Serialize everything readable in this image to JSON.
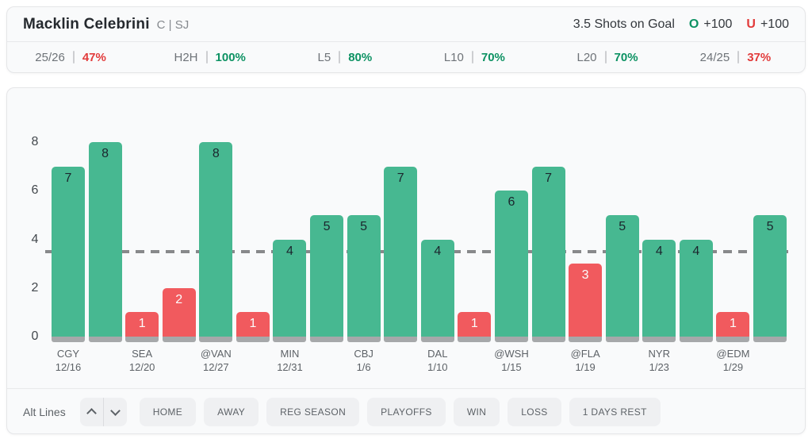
{
  "header": {
    "player_name": "Macklin Celebrini",
    "player_meta": "C | SJ",
    "prop_label": "3.5 Shots on Goal",
    "over": {
      "symbol": "O",
      "odds": "+100"
    },
    "under": {
      "symbol": "U",
      "odds": "+100"
    }
  },
  "splits": [
    {
      "label": "25/26",
      "value": "47%",
      "color": "#e23b3b"
    },
    {
      "label": "H2H",
      "value": "100%",
      "color": "#0d9263"
    },
    {
      "label": "L5",
      "value": "80%",
      "color": "#0d9263"
    },
    {
      "label": "L10",
      "value": "70%",
      "color": "#0d9263"
    },
    {
      "label": "L20",
      "value": "70%",
      "color": "#0d9263"
    },
    {
      "label": "24/25",
      "value": "37%",
      "color": "#e23b3b"
    }
  ],
  "chart_data": {
    "type": "bar",
    "ylabel": "",
    "xlabel": "",
    "ylim": [
      0,
      8
    ],
    "yticks": [
      0,
      2,
      4,
      6,
      8
    ],
    "threshold": 3.5,
    "legend": "none",
    "grid": "off",
    "bars": [
      {
        "value": 7,
        "result": "over",
        "opponent": "CGY",
        "date": "12/16"
      },
      {
        "value": 8,
        "result": "over"
      },
      {
        "value": 1,
        "result": "under",
        "opponent": "SEA",
        "date": "12/20"
      },
      {
        "value": 2,
        "result": "under"
      },
      {
        "value": 8,
        "result": "over",
        "opponent": "@VAN",
        "date": "12/27"
      },
      {
        "value": 1,
        "result": "under"
      },
      {
        "value": 4,
        "result": "over",
        "opponent": "MIN",
        "date": "12/31"
      },
      {
        "value": 5,
        "result": "over"
      },
      {
        "value": 5,
        "result": "over",
        "opponent": "CBJ",
        "date": "1/6"
      },
      {
        "value": 7,
        "result": "over"
      },
      {
        "value": 4,
        "result": "over",
        "opponent": "DAL",
        "date": "1/10"
      },
      {
        "value": 1,
        "result": "under"
      },
      {
        "value": 6,
        "result": "over",
        "opponent": "@WSH",
        "date": "1/15"
      },
      {
        "value": 7,
        "result": "over"
      },
      {
        "value": 3,
        "result": "under",
        "opponent": "@FLA",
        "date": "1/19"
      },
      {
        "value": 5,
        "result": "over"
      },
      {
        "value": 4,
        "result": "over",
        "opponent": "NYR",
        "date": "1/23"
      },
      {
        "value": 4,
        "result": "over"
      },
      {
        "value": 1,
        "result": "under",
        "opponent": "@EDM",
        "date": "1/29"
      },
      {
        "value": 5,
        "result": "over"
      }
    ],
    "colors": {
      "over_bar": "#47b891",
      "under_bar": "#f15a5e",
      "bar_base": "#a6a8aa",
      "threshold_line": "#88898b",
      "over_text": "#0d9263",
      "under_text": "#e23b3b"
    }
  },
  "toolbar": {
    "alt_lines_label": "Alt Lines",
    "stepper_icons": {
      "increase": "chevron-up-icon",
      "decrease": "chevron-down-icon"
    },
    "filters": [
      "HOME",
      "AWAY",
      "REG SEASON",
      "PLAYOFFS",
      "WIN",
      "LOSS",
      "1 DAYS REST"
    ]
  }
}
